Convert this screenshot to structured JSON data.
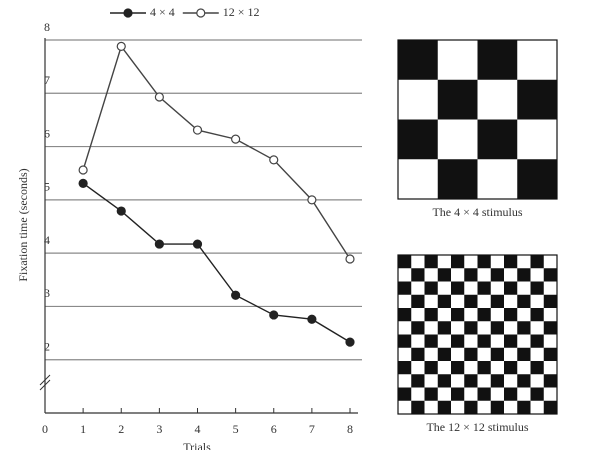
{
  "chart_data": {
    "type": "line",
    "x": [
      1,
      2,
      3,
      4,
      5,
      6,
      7,
      8
    ],
    "series": [
      {
        "name": "4 × 4",
        "color": "#222222",
        "marker": "filled",
        "values": [
          5.31,
          4.79,
          4.17,
          4.17,
          3.21,
          2.84,
          2.76,
          2.33
        ]
      },
      {
        "name": "12 × 12",
        "color": "#444444",
        "marker": "open",
        "values": [
          5.56,
          7.88,
          6.93,
          6.31,
          6.14,
          5.75,
          5.0,
          3.89
        ]
      }
    ],
    "xlim": [
      0,
      8
    ],
    "xticks": [
      0,
      1,
      2,
      3,
      4,
      5,
      6,
      7,
      8
    ],
    "ylim": [
      1,
      8
    ],
    "yticks": [
      2,
      3,
      4,
      5,
      6,
      7,
      8
    ],
    "x_label": "Trials",
    "y_label": "Fixation time (seconds)",
    "grid": true,
    "axis_break": true,
    "legend": "top"
  },
  "stimuli": [
    {
      "caption": "The 4 × 4 stimulus",
      "cells": 4
    },
    {
      "caption": "The 12 × 12 stimulus",
      "cells": 12
    }
  ]
}
